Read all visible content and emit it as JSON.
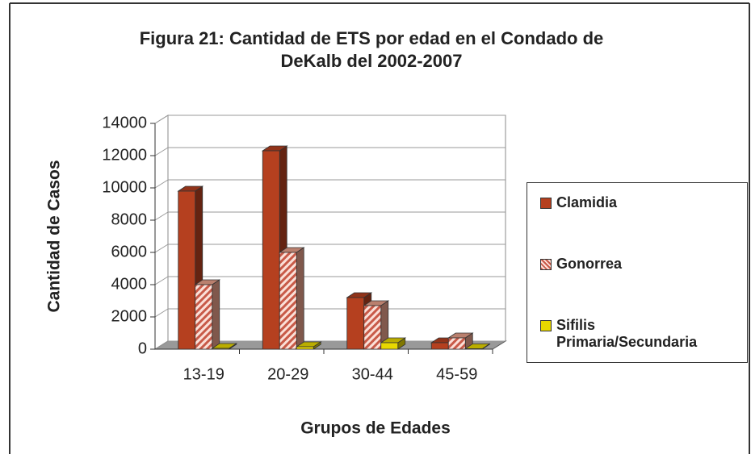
{
  "chart_data": {
    "type": "bar3d",
    "title": "Figura 21: Cantidad de ETS por edad en el Condado de DeKalb del 2002-2007",
    "x_label": "Grupos de Edades",
    "y_label": "Cantidad de Casos",
    "categories": [
      "13-19",
      "20-29",
      "30-44",
      "45-59"
    ],
    "series": [
      {
        "name": "Clamidia",
        "color": "#b5401f",
        "values": [
          9800,
          12300,
          3200,
          400
        ]
      },
      {
        "name": "Gonorrea",
        "color": "#e8a08a",
        "pattern": "hatch",
        "values": [
          4000,
          6000,
          2700,
          700
        ]
      },
      {
        "name": "Sifilis Primaria/Secundaria",
        "color": "#e8d800",
        "values": [
          50,
          150,
          400,
          30
        ]
      }
    ],
    "ylim": [
      0,
      14000
    ],
    "yticks": [
      0,
      2000,
      4000,
      6000,
      8000,
      10000,
      12000,
      14000
    ],
    "grid": true
  }
}
